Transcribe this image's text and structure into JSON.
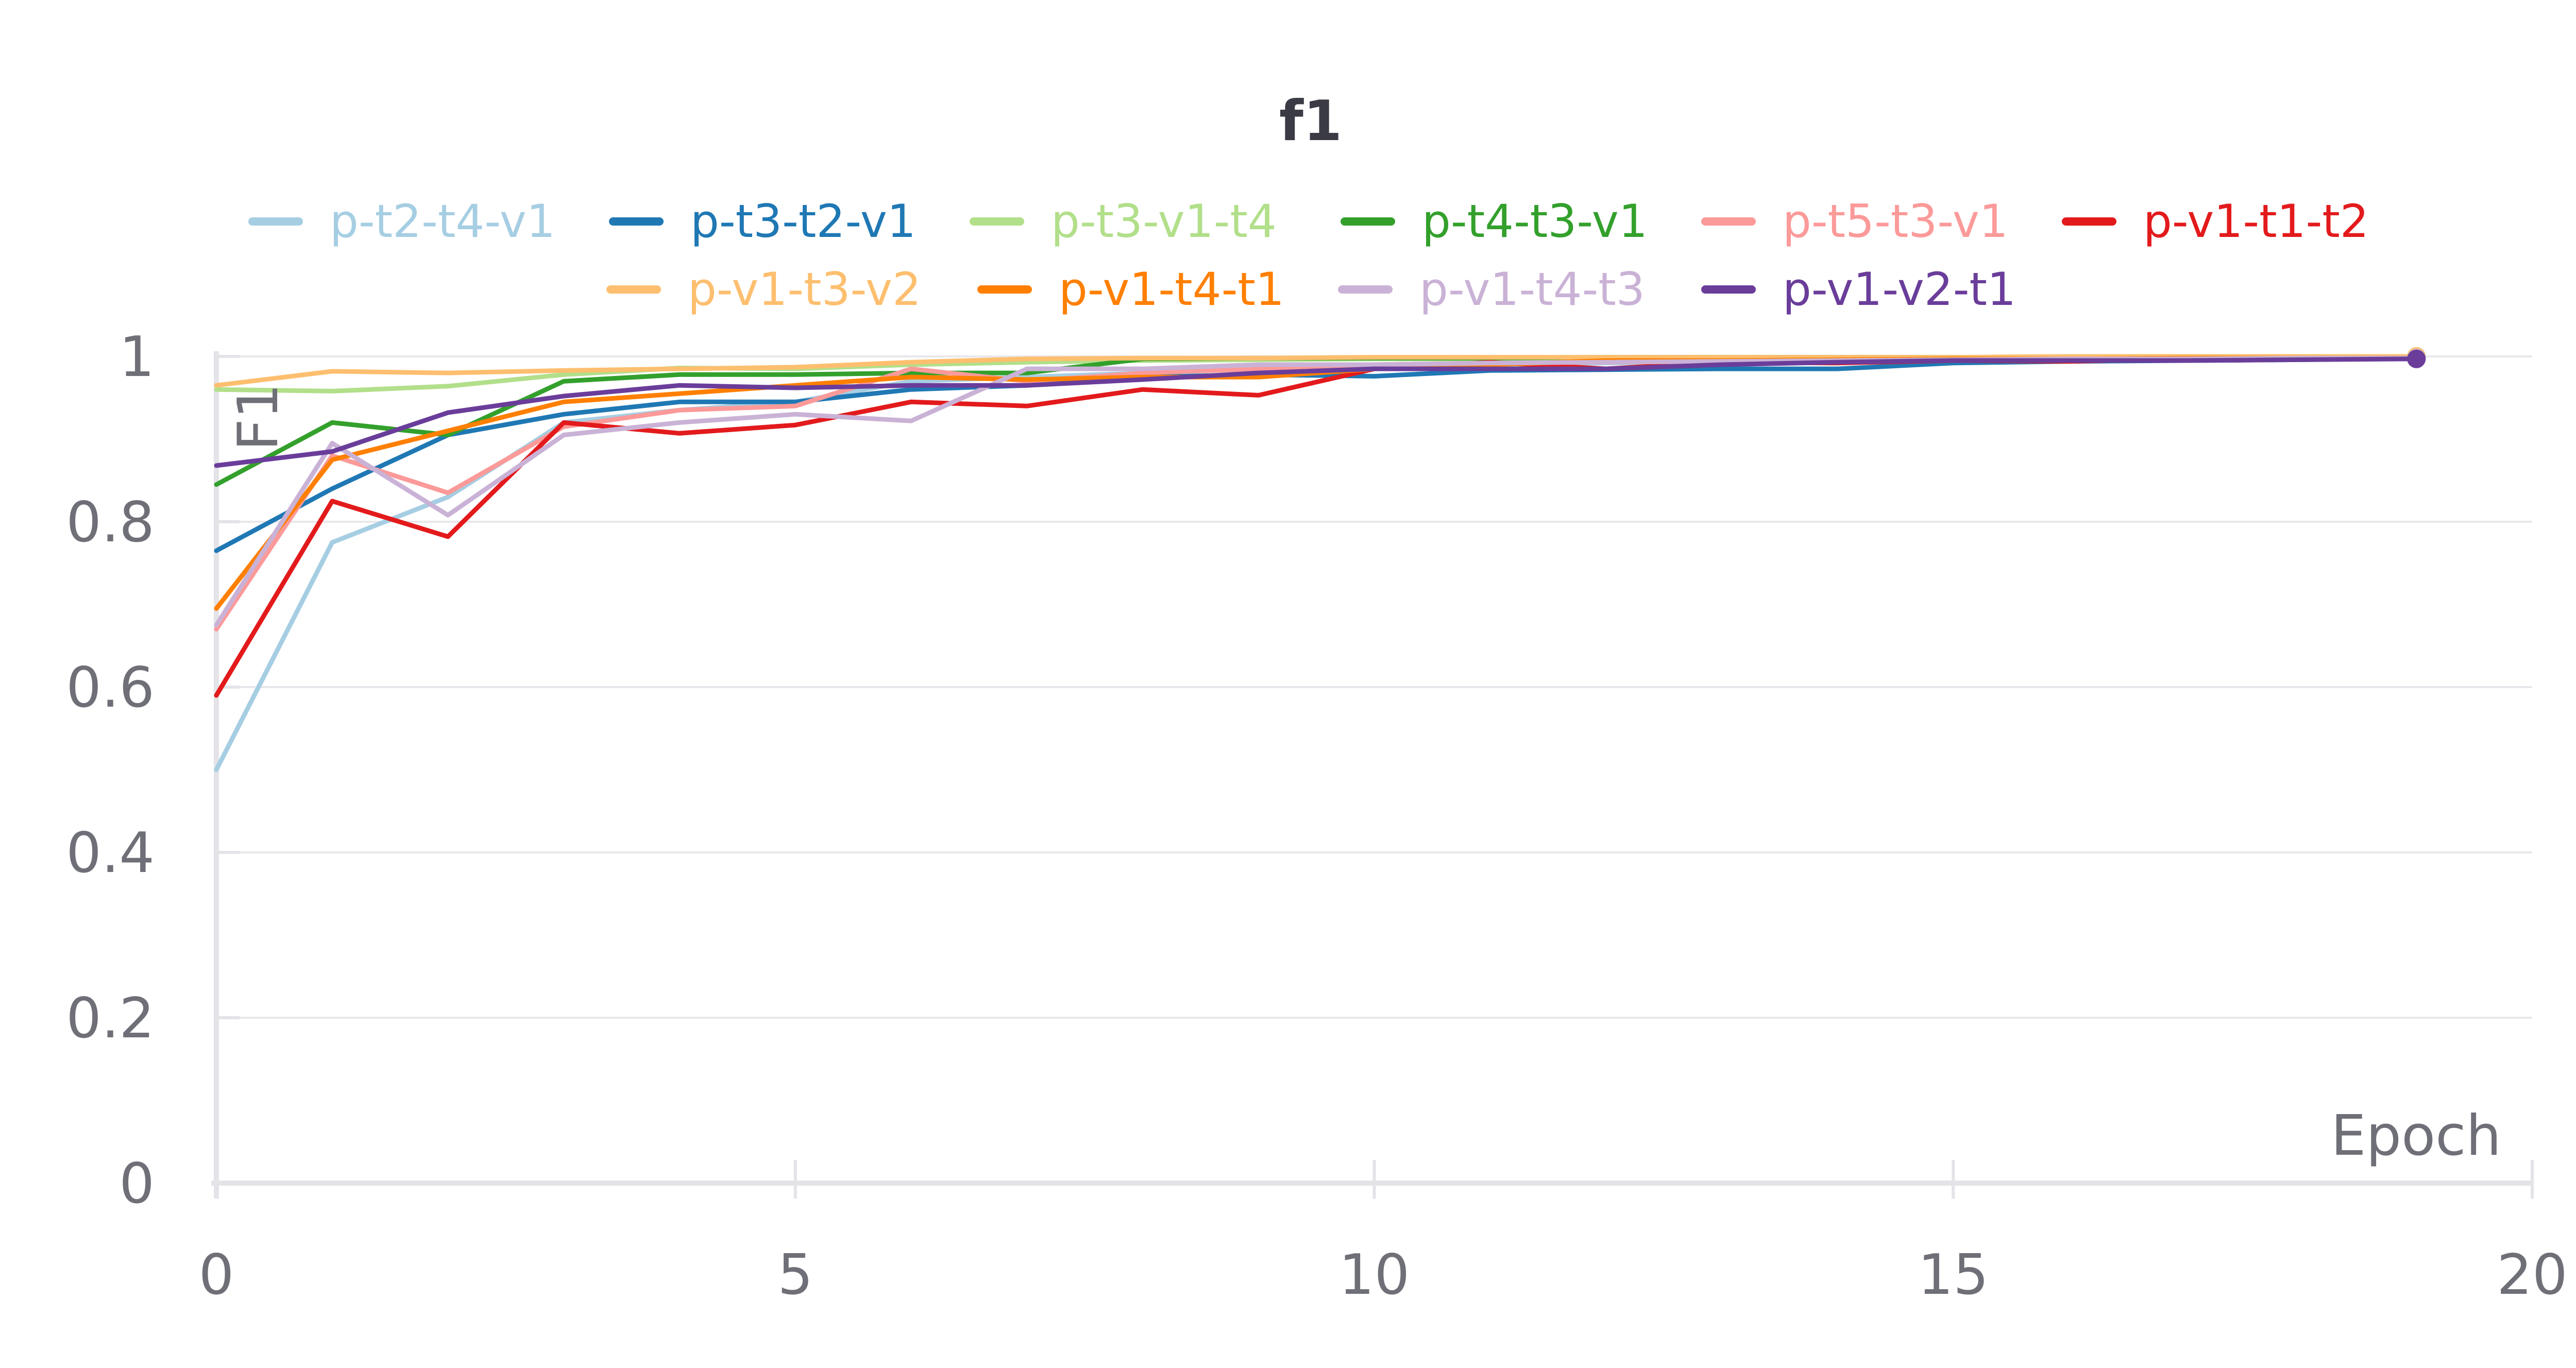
{
  "chart_data": {
    "type": "line",
    "title": "f1",
    "xlabel": "Epoch",
    "ylabel": "F1",
    "xlim": [
      0,
      20
    ],
    "ylim": [
      0,
      1
    ],
    "x_ticks": [
      0,
      5,
      10,
      15,
      20
    ],
    "x_tick_labels": [
      "0",
      "5",
      "10",
      "15",
      "20"
    ],
    "y_ticks": [
      0,
      0.2,
      0.4,
      0.6,
      0.8,
      1
    ],
    "y_tick_labels": [
      "0",
      "0.2",
      "0.4",
      "0.6",
      "0.8",
      "1"
    ],
    "grid": "horizontal",
    "legend_position": "top",
    "x": [
      0,
      1,
      2,
      3,
      4,
      5,
      6,
      7,
      8,
      9,
      10,
      11,
      12,
      13,
      14,
      15,
      16,
      17,
      18,
      19
    ],
    "series": [
      {
        "name": "p-t2-t4-v1",
        "color": "#a6cee3",
        "values": [
          0.5,
          0.775,
          0.83,
          0.92,
          0.935,
          0.945,
          0.97,
          0.975,
          0.98,
          0.985,
          0.99,
          0.99,
          0.992,
          0.993,
          0.994,
          0.995,
          0.996,
          0.996,
          0.997,
          0.998
        ]
      },
      {
        "name": "p-t3-t2-v1",
        "color": "#1f78b4",
        "values": [
          0.765,
          0.84,
          0.905,
          0.93,
          0.945,
          0.945,
          0.96,
          0.965,
          0.975,
          0.978,
          0.976,
          0.983,
          0.984,
          0.985,
          0.985,
          0.992,
          0.994,
          0.995,
          0.996,
          0.998
        ]
      },
      {
        "name": "p-t3-v1-t4",
        "color": "#b2df8a",
        "values": [
          0.96,
          0.958,
          0.964,
          0.978,
          0.986,
          0.985,
          0.99,
          0.993,
          0.995,
          0.996,
          0.997,
          0.997,
          0.998,
          0.998,
          0.998,
          0.999,
          0.999,
          0.999,
          0.999,
          1.0
        ]
      },
      {
        "name": "p-t4-t3-v1",
        "color": "#33a02c",
        "values": [
          0.845,
          0.92,
          0.905,
          0.97,
          0.978,
          0.978,
          0.98,
          0.98,
          0.997,
          0.998,
          0.998,
          0.998,
          0.999,
          0.999,
          0.999,
          0.999,
          0.999,
          1.0,
          1.0,
          1.0
        ]
      },
      {
        "name": "p-t5-t3-v1",
        "color": "#fb9a99",
        "values": [
          0.67,
          0.88,
          0.835,
          0.915,
          0.935,
          0.94,
          0.985,
          0.97,
          0.98,
          0.985,
          0.99,
          0.992,
          0.993,
          0.994,
          0.995,
          0.996,
          0.996,
          0.997,
          0.998,
          0.998
        ]
      },
      {
        "name": "p-v1-t1-t2",
        "color": "#e31a1c",
        "values": [
          0.59,
          0.825,
          0.782,
          0.92,
          0.907,
          0.917,
          0.945,
          0.94,
          0.96,
          0.953,
          0.985,
          0.993,
          0.985,
          0.993,
          0.992,
          0.995,
          0.994,
          0.997,
          0.997,
          0.998
        ]
      },
      {
        "name": "p-v1-t3-v2",
        "color": "#fdbf6f",
        "values": [
          0.965,
          0.982,
          0.98,
          0.983,
          0.985,
          0.987,
          0.993,
          0.997,
          0.998,
          0.998,
          0.999,
          0.999,
          0.999,
          0.999,
          0.999,
          0.999,
          1.0,
          1.0,
          1.0,
          1.0
        ]
      },
      {
        "name": "p-v1-t4-t1",
        "color": "#ff7f00",
        "values": [
          0.695,
          0.875,
          0.91,
          0.945,
          0.955,
          0.965,
          0.975,
          0.972,
          0.975,
          0.975,
          0.985,
          0.99,
          0.995,
          0.995,
          0.996,
          0.997,
          0.997,
          0.998,
          0.998,
          0.998
        ]
      },
      {
        "name": "p-v1-t4-t3",
        "color": "#cab2d6",
        "values": [
          0.675,
          0.895,
          0.808,
          0.905,
          0.92,
          0.93,
          0.922,
          0.985,
          0.985,
          0.99,
          0.99,
          0.992,
          0.993,
          0.994,
          0.995,
          0.996,
          0.997,
          0.997,
          0.998,
          0.998
        ]
      },
      {
        "name": "p-v1-v2-t1",
        "color": "#6a3d9a",
        "values": [
          0.868,
          0.885,
          0.932,
          0.952,
          0.965,
          0.962,
          0.965,
          0.965,
          0.972,
          0.98,
          0.985,
          0.985,
          0.985,
          0.99,
          0.993,
          0.995,
          0.995,
          0.995,
          0.996,
          0.997
        ]
      }
    ]
  }
}
